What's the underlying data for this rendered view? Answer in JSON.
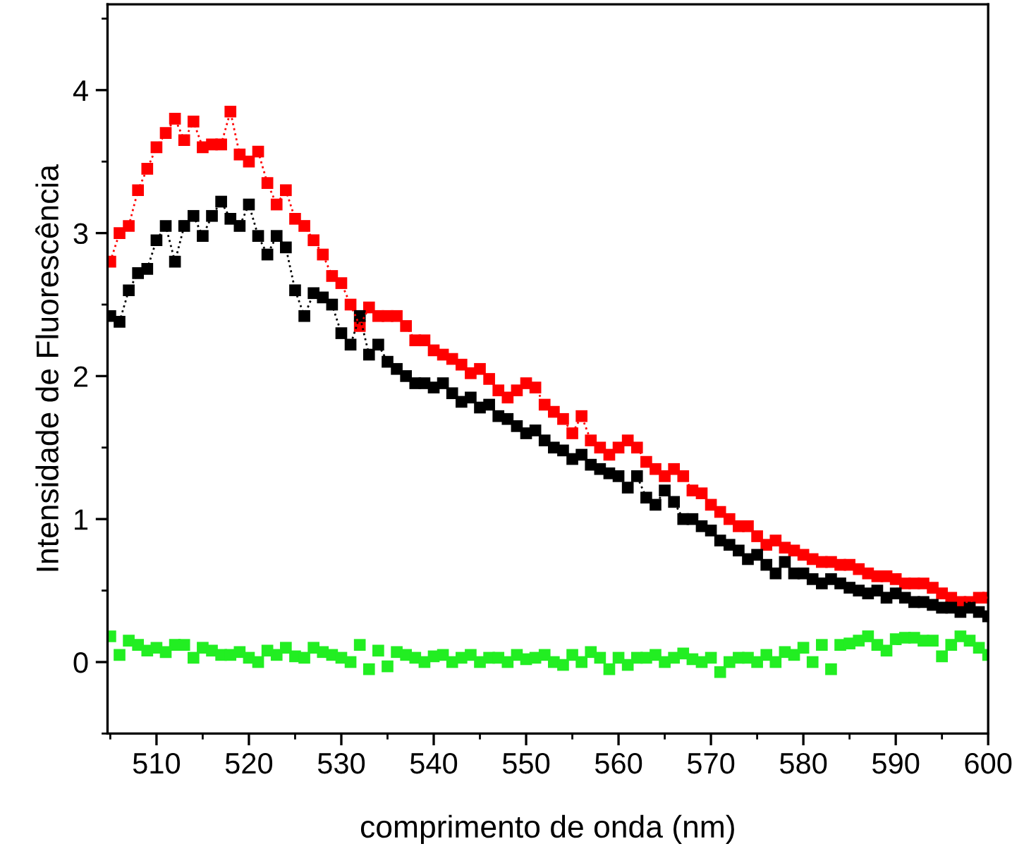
{
  "chart_data": {
    "type": "line",
    "xlabel": "comprimento de onda (nm)",
    "ylabel": "Intensidade de Fluorescência",
    "x": [
      505,
      506,
      507,
      508,
      509,
      510,
      511,
      512,
      513,
      514,
      515,
      516,
      517,
      518,
      519,
      520,
      521,
      522,
      523,
      524,
      525,
      526,
      527,
      528,
      529,
      530,
      531,
      532,
      533,
      534,
      535,
      536,
      537,
      538,
      539,
      540,
      541,
      542,
      543,
      544,
      545,
      546,
      547,
      548,
      549,
      550,
      551,
      552,
      553,
      554,
      555,
      556,
      557,
      558,
      559,
      560,
      561,
      562,
      563,
      564,
      565,
      566,
      567,
      568,
      569,
      570,
      571,
      572,
      573,
      574,
      575,
      576,
      577,
      578,
      579,
      580,
      581,
      582,
      583,
      584,
      585,
      586,
      587,
      588,
      589,
      590,
      591,
      592,
      593,
      594,
      595,
      596,
      597,
      598,
      599,
      600
    ],
    "series": [
      {
        "color": "#ff0000",
        "values": [
          2.8,
          3.0,
          3.05,
          3.3,
          3.45,
          3.6,
          3.7,
          3.8,
          3.65,
          3.78,
          3.6,
          3.62,
          3.62,
          3.85,
          3.55,
          3.5,
          3.57,
          3.35,
          3.2,
          3.3,
          3.1,
          3.05,
          2.95,
          2.85,
          2.7,
          2.65,
          2.5,
          2.35,
          2.48,
          2.42,
          2.42,
          2.42,
          2.35,
          2.25,
          2.25,
          2.18,
          2.15,
          2.12,
          2.08,
          2.02,
          2.05,
          1.98,
          1.9,
          1.85,
          1.9,
          1.95,
          1.92,
          1.8,
          1.75,
          1.7,
          1.6,
          1.72,
          1.55,
          1.5,
          1.45,
          1.5,
          1.55,
          1.5,
          1.4,
          1.35,
          1.3,
          1.35,
          1.3,
          1.2,
          1.18,
          1.1,
          1.05,
          1.0,
          0.95,
          0.95,
          0.88,
          0.82,
          0.85,
          0.8,
          0.78,
          0.75,
          0.72,
          0.7,
          0.7,
          0.68,
          0.68,
          0.65,
          0.62,
          0.6,
          0.6,
          0.58,
          0.55,
          0.55,
          0.55,
          0.52,
          0.48,
          0.45,
          0.42,
          0.42,
          0.45,
          0.45
        ]
      },
      {
        "color": "#000000",
        "values": [
          2.42,
          2.38,
          2.6,
          2.72,
          2.75,
          2.95,
          3.05,
          2.8,
          3.05,
          3.12,
          2.98,
          3.12,
          3.22,
          3.1,
          3.05,
          3.2,
          2.98,
          2.85,
          2.98,
          2.9,
          2.6,
          2.42,
          2.58,
          2.55,
          2.5,
          2.3,
          2.22,
          2.42,
          2.15,
          2.22,
          2.1,
          2.05,
          2.0,
          1.95,
          1.95,
          1.92,
          1.95,
          1.88,
          1.82,
          1.85,
          1.78,
          1.8,
          1.72,
          1.7,
          1.65,
          1.6,
          1.62,
          1.55,
          1.5,
          1.48,
          1.42,
          1.45,
          1.38,
          1.35,
          1.32,
          1.3,
          1.22,
          1.3,
          1.15,
          1.1,
          1.2,
          1.12,
          1.0,
          1.0,
          0.95,
          0.92,
          0.85,
          0.82,
          0.78,
          0.72,
          0.75,
          0.68,
          0.62,
          0.7,
          0.62,
          0.62,
          0.58,
          0.55,
          0.58,
          0.55,
          0.52,
          0.5,
          0.48,
          0.5,
          0.45,
          0.48,
          0.45,
          0.42,
          0.42,
          0.4,
          0.38,
          0.38,
          0.35,
          0.38,
          0.35,
          0.32
        ]
      },
      {
        "type": "scatter",
        "color": "#22ee22",
        "values": [
          0.18,
          0.05,
          0.15,
          0.12,
          0.08,
          0.1,
          0.07,
          0.12,
          0.12,
          0.03,
          0.1,
          0.08,
          0.05,
          0.05,
          0.07,
          0.03,
          0.0,
          0.08,
          0.05,
          0.1,
          0.04,
          0.03,
          0.1,
          0.07,
          0.05,
          0.03,
          0.0,
          0.12,
          -0.05,
          0.08,
          -0.03,
          0.07,
          0.05,
          0.03,
          0.0,
          0.04,
          0.05,
          0.0,
          0.03,
          0.05,
          0.0,
          0.03,
          0.03,
          0.0,
          0.05,
          0.02,
          0.03,
          0.05,
          0.0,
          -0.02,
          0.05,
          0.0,
          0.07,
          0.03,
          -0.05,
          0.03,
          -0.02,
          0.03,
          0.03,
          0.05,
          0.0,
          0.03,
          0.06,
          0.02,
          0.0,
          0.03,
          -0.07,
          0.0,
          0.03,
          0.03,
          0.0,
          0.05,
          0.0,
          0.07,
          0.05,
          0.1,
          0.0,
          0.12,
          -0.05,
          0.12,
          0.13,
          0.15,
          0.18,
          0.12,
          0.08,
          0.16,
          0.17,
          0.17,
          0.15,
          0.15,
          0.04,
          0.12,
          0.18,
          0.15,
          0.1,
          0.05
        ]
      }
    ],
    "xlim": [
      504.7,
      600
    ],
    "xticks": [
      510,
      520,
      530,
      540,
      550,
      560,
      570,
      580,
      590,
      600
    ],
    "ylim": [
      -0.5,
      4.6
    ],
    "yticks": [
      0,
      1,
      2,
      3,
      4
    ],
    "marker": "square",
    "line_style": "dotted",
    "grid": false,
    "legend": false
  }
}
